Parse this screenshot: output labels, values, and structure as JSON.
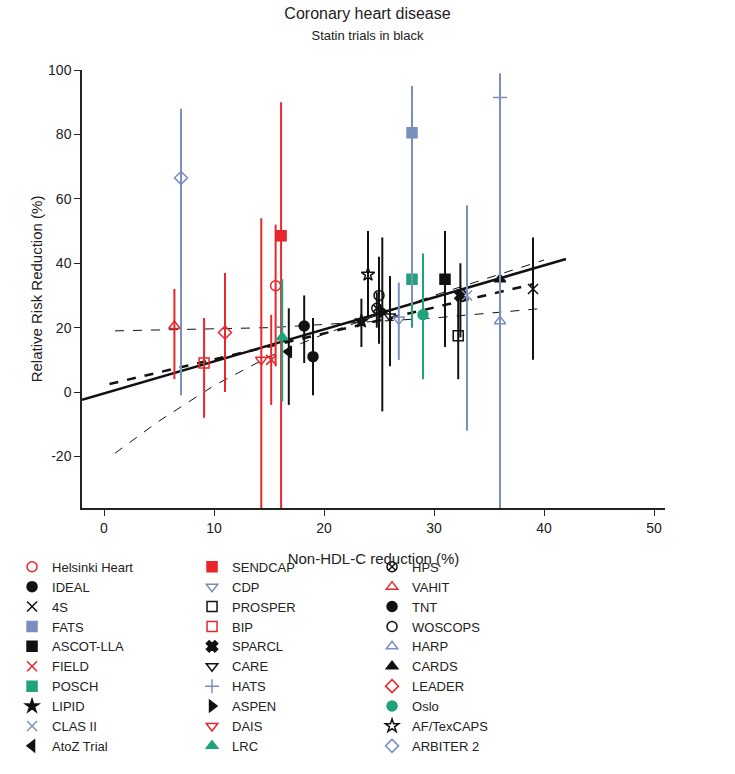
{
  "chart_data": {
    "type": "scatter",
    "title": "Coronary heart disease",
    "subtitle": "Statin trials in black",
    "x_label": "Non-HDL-C reduction (%)",
    "y_label": "Relative Risk Reduction (%)",
    "xlim": [
      -2,
      51
    ],
    "ylim": [
      -36,
      100
    ],
    "xticks": [
      0,
      10,
      20,
      30,
      40,
      50
    ],
    "yticks": [
      -20,
      0,
      20,
      40,
      60,
      80,
      100
    ],
    "grid": false,
    "legend": "bottom",
    "fit_lines": [
      {
        "x": [
          1,
          10,
          15,
          20,
          25,
          30,
          35,
          40
        ],
        "values": [
          19,
          19.5,
          20,
          21,
          22,
          23,
          24.5,
          26
        ],
        "color": "#111111",
        "line_style": "thin dashed"
      },
      {
        "x": [
          1,
          5,
          10,
          15,
          20,
          25,
          30,
          35,
          40
        ],
        "values": [
          -19,
          -9,
          2,
          11,
          18,
          24,
          30,
          35.5,
          41
        ],
        "color": "#111111",
        "line_style": "thin dashed"
      },
      {
        "x": [
          0.5,
          39
        ],
        "values": [
          2.5,
          33.5
        ],
        "color": "#111111",
        "line_style": "dashed"
      },
      {
        "x": [
          -2,
          42
        ],
        "values": [
          -2.4,
          41.3
        ],
        "color": "#111111",
        "line_style": "solid"
      }
    ],
    "series": [
      {
        "name": "Helsinki Heart",
        "color": "#e8262b",
        "marker": "circle-open",
        "x": [
          15.6
        ],
        "values": [
          33
        ],
        "error_low": [
          8
        ],
        "error_high": [
          52
        ]
      },
      {
        "name": "VAHIT",
        "color": "#e8262b",
        "marker": "triangle-up-open",
        "x": [
          6.4
        ],
        "values": [
          20.5
        ],
        "error_low": [
          4
        ],
        "error_high": [
          32
        ]
      },
      {
        "name": "BIP",
        "color": "#e8262b",
        "marker": "square-open",
        "x": [
          9.1
        ],
        "values": [
          9
        ],
        "error_low": [
          -8
        ],
        "error_high": [
          23
        ]
      },
      {
        "name": "FIELD",
        "color": "#e8262b",
        "marker": "x-thin-open",
        "x": [
          15.2
        ],
        "values": [
          10
        ],
        "error_low": [
          -4
        ],
        "error_high": [
          24
        ]
      },
      {
        "name": "LEADER",
        "color": "#e8262b",
        "marker": "diamond-open",
        "x": [
          11
        ],
        "values": [
          18.5
        ],
        "error_low": [
          0
        ],
        "error_high": [
          37
        ]
      },
      {
        "name": "DAIS",
        "color": "#e8262b",
        "marker": "triangle-down-open",
        "x": [
          14.3
        ],
        "values": [
          10
        ],
        "error_low": [
          -40
        ],
        "error_high": [
          54
        ]
      },
      {
        "name": "SENDCAP",
        "color": "#e8262b",
        "marker": "square",
        "x": [
          16.1
        ],
        "values": [
          48.5
        ],
        "error_low": [
          -40
        ],
        "error_high": [
          90
        ]
      },
      {
        "name": "4S",
        "color": "#111111",
        "marker": "x-thin-open",
        "x": [
          39
        ],
        "values": [
          32
        ],
        "error_low": [
          10
        ],
        "error_high": [
          48
        ]
      },
      {
        "name": "WOSCOPS",
        "color": "#111111",
        "marker": "circle-open",
        "x": [
          25
        ],
        "values": [
          30
        ],
        "error_low": [
          15
        ],
        "error_high": [
          42
        ]
      },
      {
        "name": "CARE",
        "color": "#111111",
        "marker": "triangle-down-open",
        "x": [
          26
        ],
        "values": [
          23.5
        ],
        "error_low": [
          8
        ],
        "error_high": [
          36
        ]
      },
      {
        "name": "LIPID",
        "color": "#111111",
        "marker": "star",
        "x": [
          23.4
        ],
        "values": [
          22
        ],
        "error_low": [
          14
        ],
        "error_high": [
          29
        ]
      },
      {
        "name": "AF/TexCAPS",
        "color": "#111111",
        "marker": "star-open",
        "x": [
          24
        ],
        "values": [
          36.5
        ],
        "error_low": [
          23
        ],
        "error_high": [
          50
        ]
      },
      {
        "name": "HPS",
        "color": "#111111",
        "marker": "circle-x-open",
        "x": [
          24.8
        ],
        "values": [
          26
        ],
        "error_low": [
          20
        ],
        "error_high": [
          31
        ]
      },
      {
        "name": "PROSPER",
        "color": "#111111",
        "marker": "square-open",
        "x": [
          32.2
        ],
        "values": [
          17.5
        ],
        "error_low": [
          4
        ],
        "error_high": [
          30
        ]
      },
      {
        "name": "ASCOT-LLA",
        "color": "#111111",
        "marker": "square",
        "x": [
          31
        ],
        "values": [
          35
        ],
        "error_low": [
          14
        ],
        "error_high": [
          50
        ]
      },
      {
        "name": "CARDS",
        "color": "#111111",
        "marker": "triangle-up",
        "x": [
          36
        ],
        "values": [
          35
        ],
        "error_low": [
          15
        ],
        "error_high": [
          50
        ]
      },
      {
        "name": "ASPEN",
        "color": "#111111",
        "marker": "triangle-right",
        "x": [
          25.3
        ],
        "values": [
          25
        ],
        "error_low": [
          -6
        ],
        "error_high": [
          48
        ]
      },
      {
        "name": "AtoZ Trial",
        "color": "#111111",
        "marker": "triangle-left",
        "x": [
          16.8
        ],
        "values": [
          12.5
        ],
        "error_low": [
          -4
        ],
        "error_high": [
          26
        ]
      },
      {
        "name": "IDEAL",
        "color": "#111111",
        "marker": "circle",
        "x": [
          19
        ],
        "values": [
          11
        ],
        "error_low": [
          -1
        ],
        "error_high": [
          23
        ]
      },
      {
        "name": "TNT",
        "color": "#111111",
        "marker": "circle",
        "x": [
          18.2
        ],
        "values": [
          20.5
        ],
        "error_low": [
          9
        ],
        "error_high": [
          30
        ]
      },
      {
        "name": "SPARCL",
        "color": "#111111",
        "marker": "x",
        "x": [
          32.4
        ],
        "values": [
          30
        ],
        "error_low": [
          17
        ],
        "error_high": [
          40
        ]
      },
      {
        "name": "POSCH",
        "color": "#1fa37a",
        "marker": "square",
        "x": [
          28
        ],
        "values": [
          35
        ],
        "error_low": [
          20
        ],
        "error_high": [
          47
        ]
      },
      {
        "name": "Oslo",
        "color": "#1fa37a",
        "marker": "circle",
        "x": [
          29
        ],
        "values": [
          24
        ],
        "error_low": [
          4
        ],
        "error_high": [
          43
        ]
      },
      {
        "name": "LRC",
        "color": "#1fa37a",
        "marker": "triangle-up",
        "x": [
          16.2
        ],
        "values": [
          17
        ],
        "error_low": [
          -3
        ],
        "error_high": [
          35
        ]
      },
      {
        "name": "CDP",
        "color": "#7b8fbf",
        "marker": "triangle-down-open",
        "x": [
          26.8
        ],
        "values": [
          22.5
        ],
        "error_low": [
          10
        ],
        "error_high": [
          34
        ]
      },
      {
        "name": "FATS",
        "color": "#7b8fbf",
        "marker": "square",
        "x": [
          28
        ],
        "values": [
          80.5
        ],
        "error_low": [
          27
        ],
        "error_high": [
          95
        ]
      },
      {
        "name": "HARP",
        "color": "#7b8fbf",
        "marker": "triangle-up-open",
        "x": [
          36
        ],
        "values": [
          22
        ],
        "error_low": [
          -40
        ],
        "error_high": [
          57
        ]
      },
      {
        "name": "HATS",
        "color": "#7b8fbf",
        "marker": "cross-thin-open",
        "x": [
          36
        ],
        "values": [
          91.5
        ],
        "error_low": [
          25
        ],
        "error_high": [
          99
        ]
      },
      {
        "name": "CLAS II",
        "color": "#7b8fbf",
        "marker": "x-thin-open",
        "x": [
          33
        ],
        "values": [
          30
        ],
        "error_low": [
          -12
        ],
        "error_high": [
          58
        ]
      },
      {
        "name": "ARBITER 2",
        "color": "#7b8fbf",
        "marker": "diamond-open",
        "x": [
          7
        ],
        "values": [
          66.5
        ],
        "error_low": [
          -1
        ],
        "error_high": [
          88
        ]
      }
    ]
  }
}
